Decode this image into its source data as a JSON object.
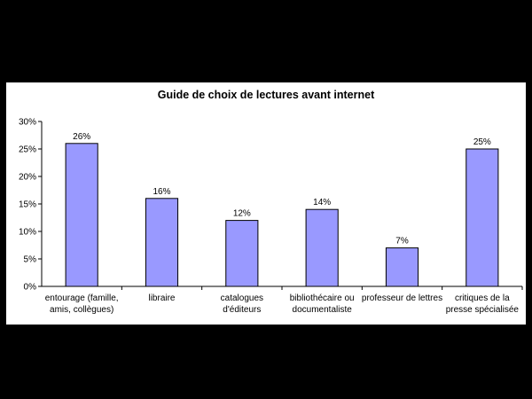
{
  "chart_data": {
    "type": "bar",
    "title": "Guide de choix de lectures avant internet",
    "categories": [
      [
        "entourage (famille,",
        "amis, collègues)"
      ],
      [
        "libraire"
      ],
      [
        "catalogues",
        "d'éditeurs"
      ],
      [
        "bibliothécaire ou",
        "documentaliste"
      ],
      [
        "professeur de lettres"
      ],
      [
        "critiques de la",
        "presse spécialisée"
      ]
    ],
    "values": [
      26,
      16,
      12,
      14,
      7,
      25
    ],
    "value_labels": [
      "26%",
      "16%",
      "12%",
      "14%",
      "7%",
      "25%"
    ],
    "y_ticks": [
      0,
      5,
      10,
      15,
      20,
      25,
      30
    ],
    "y_tick_labels": [
      "0%",
      "5%",
      "10%",
      "15%",
      "20%",
      "25%",
      "30%"
    ],
    "ylim": [
      0,
      30
    ],
    "xlabel": "",
    "ylabel": "",
    "grid": false,
    "legend": "none",
    "bar_color": "#9999ff",
    "bar_stroke": "#000000"
  }
}
